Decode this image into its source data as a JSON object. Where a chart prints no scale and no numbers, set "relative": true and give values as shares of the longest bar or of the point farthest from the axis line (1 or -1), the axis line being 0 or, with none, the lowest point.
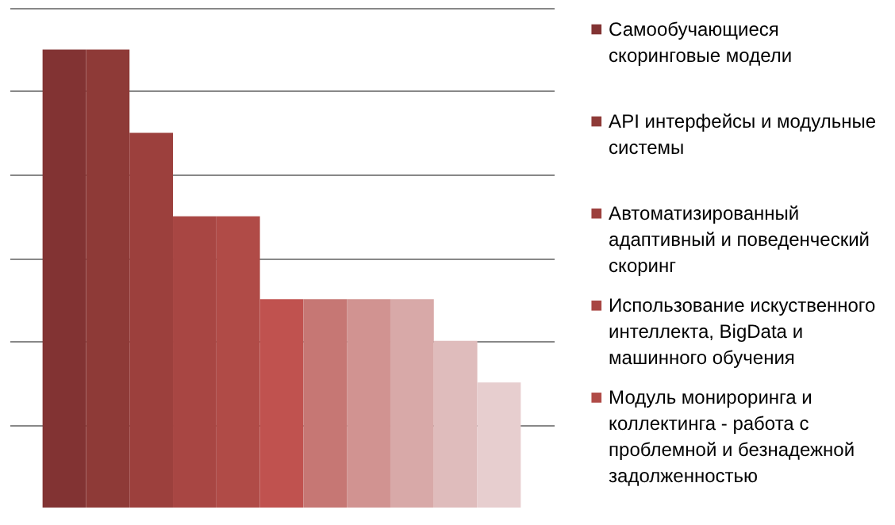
{
  "chart_data": {
    "type": "bar",
    "relative": true,
    "grid": "y",
    "legend": "right",
    "categories": [
      null
    ],
    "series": [
      {
        "name": "Самообучающиеся скоринговые модели",
        "color": "#823333",
        "values": [
          1
        ]
      },
      {
        "name": "API интерфейсы и модульные системы",
        "color": "#8e3a37",
        "values": [
          1
        ]
      },
      {
        "name": "Автоматизированный адаптивный и поведенческий скоринг",
        "color": "#9c403d",
        "values": [
          0.818
        ]
      },
      {
        "name": "Использование искуственного интеллекта, BigData и машинного обучения",
        "color": "#a84643",
        "values": [
          0.636
        ]
      },
      {
        "name": "Модуль монироринга и коллектинга - работа с проблемной и безнадежной задолженностью",
        "color": "#b04b47",
        "values": [
          0.636
        ]
      },
      {
        "color": "#c0524f",
        "values": [
          0.455
        ]
      },
      {
        "color": "#c67774",
        "values": [
          0.455
        ]
      },
      {
        "color": "#d19391",
        "values": [
          0.455
        ]
      },
      {
        "color": "#d8a9a8",
        "values": [
          0.455
        ]
      },
      {
        "color": "#dfbcbc",
        "values": [
          0.364
        ]
      },
      {
        "color": "#e7cecf",
        "values": [
          0.273
        ]
      }
    ]
  }
}
